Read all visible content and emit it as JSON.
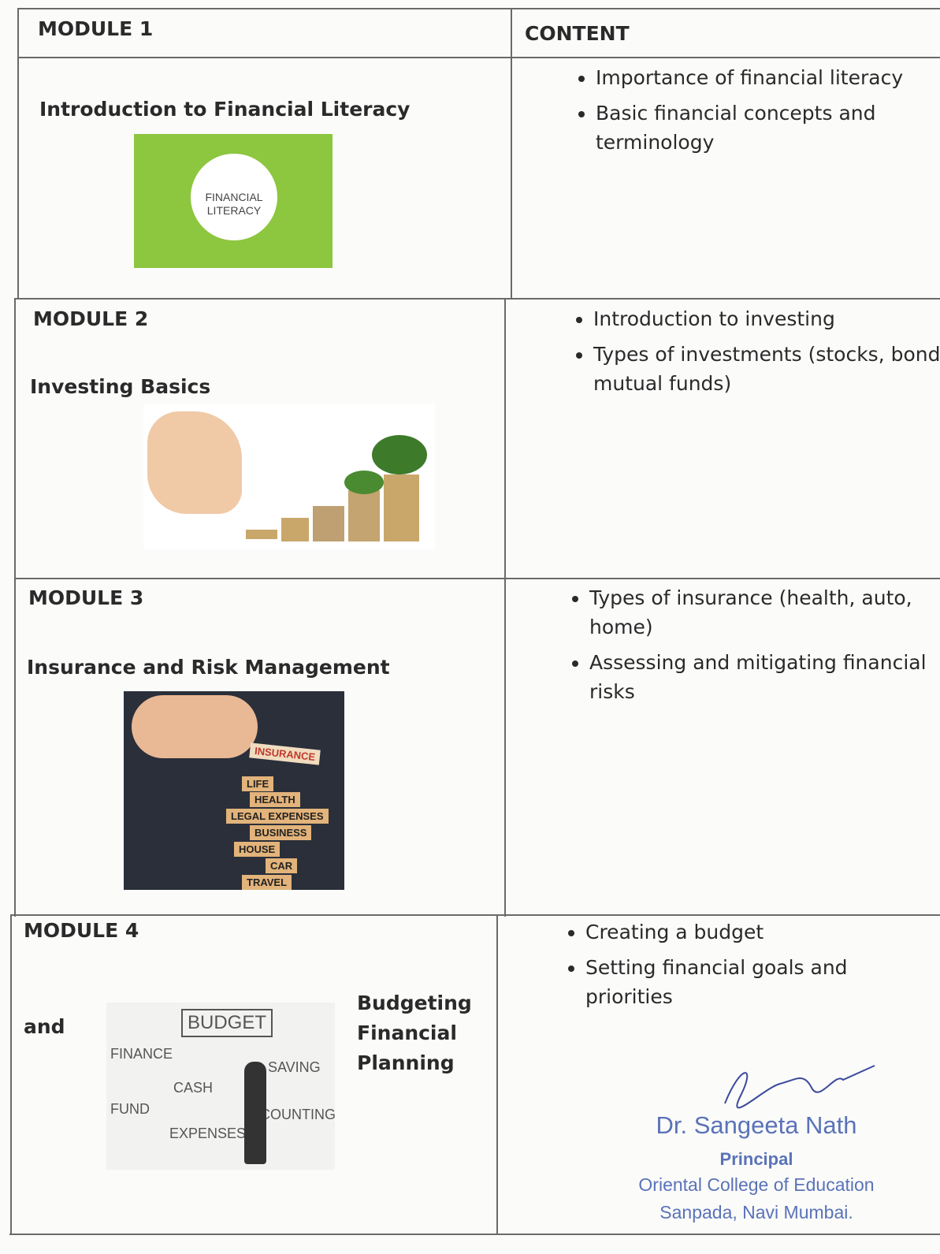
{
  "header": {
    "module": "MODULE 1",
    "content": "CONTENT"
  },
  "modules": [
    {
      "title": "Introduction to Financial Literacy",
      "image_text": [
        "FINANCIAL",
        "LITERACY"
      ],
      "content": [
        "Importance of financial literacy",
        "Basic financial concepts and terminology"
      ]
    },
    {
      "label": "MODULE 2",
      "title": "Investing Basics",
      "content": [
        "Introduction to investing",
        "Types of investments (stocks, bonds, mutual funds)"
      ]
    },
    {
      "label": "MODULE 3",
      "title": "Insurance and Risk Management",
      "image_text": [
        "INSURANCE",
        "LIFE",
        "HEALTH",
        "LEGAL EXPENSES",
        "BUSINESS",
        "HOUSE",
        "CAR",
        "TRAVEL"
      ],
      "content": [
        "Types of insurance (health, auto, home)",
        "Assessing and mitigating financial risks"
      ]
    },
    {
      "label": "MODULE 4",
      "title_parts": [
        "and",
        "Budgeting",
        "Financial",
        "Planning"
      ],
      "image_text": [
        "BUDGET",
        "FINANCE",
        "SAVING",
        "CASH",
        "FUND",
        "COUNTING",
        "EXPENSES"
      ],
      "content": [
        "Creating a budget",
        "Setting financial goals and priorities"
      ]
    }
  ],
  "stamp": {
    "name": "Dr. Sangeeta Nath",
    "role": "Principal",
    "institution": "Oriental College of Education",
    "place": "Sanpada, Navi Mumbai."
  }
}
